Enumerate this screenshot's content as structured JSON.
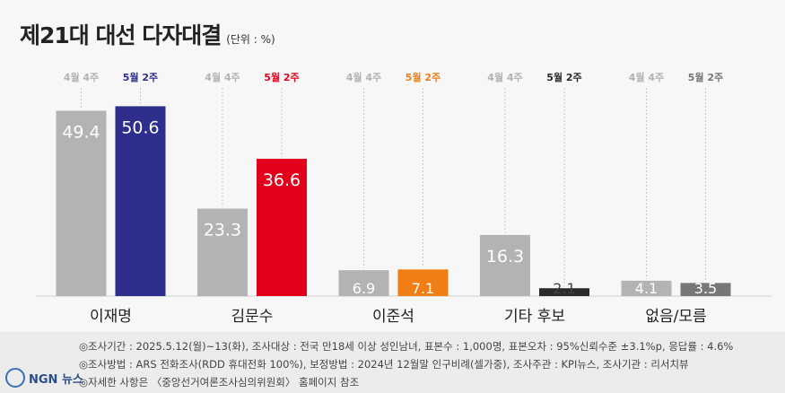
{
  "header": {
    "title": "제21대 대선 다자대결",
    "unit": "(단위 : %)"
  },
  "chart_data": {
    "type": "bar",
    "categories": [
      "이재명",
      "김문수",
      "이준석",
      "기타 후보",
      "없음/모름"
    ],
    "series": [
      {
        "name": "4월 4주",
        "values": [
          49.4,
          23.3,
          6.9,
          16.3,
          4.1
        ]
      },
      {
        "name": "5월 2주",
        "values": [
          50.6,
          36.6,
          7.1,
          2.1,
          3.5
        ]
      }
    ],
    "series_labels_per_category": [
      [
        "4월 4주",
        "5월 2주"
      ],
      [
        "4월 4주",
        "5월 2주"
      ],
      [
        "4월 4주",
        "5월 2주"
      ],
      [
        "4월 4주",
        "5월 2주"
      ],
      [
        "4월 4주",
        "5월 2주"
      ]
    ],
    "colors": {
      "previous": "#b3b3b3",
      "current": [
        "#2e2f8c",
        "#e2001a",
        "#f07e14",
        "#2b2b2b",
        "#777777"
      ]
    },
    "ylim": [
      0,
      55
    ],
    "grid": false,
    "legend": "above each bar pair"
  },
  "footer": {
    "notes": [
      "◎조사기간 : 2025.5.12(월)~13(화), 조사대상 : 전국 만18세 이상 성인남녀, 표본수 : 1,000명, 표본오차 : 95%신뢰수준 ±3.1%p, 응답률 : 4.6%",
      "◎조사방법 : ARS 전화조사(RDD 휴대전화 100%), 보정방법 : 2024년 12월말 인구비례(셀가중), 조사주관 : KPI뉴스, 조사기관 : 리서치뷰",
      "◎자세한 사항은 〈중앙선거여론조사심의위원회〉 홈페이지 참조"
    ],
    "logo": "NGN 뉴스"
  }
}
